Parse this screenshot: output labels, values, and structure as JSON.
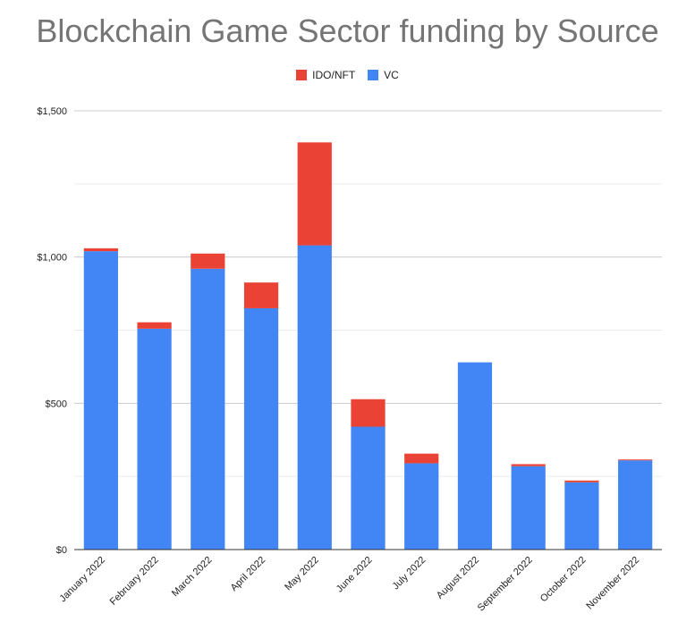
{
  "chart_data": {
    "type": "bar",
    "stacked": true,
    "title": "Blockchain Game Sector funding by Source",
    "xlabel": "",
    "ylabel": "",
    "ylim": [
      0,
      1500
    ],
    "yticks": [
      0,
      500,
      1000,
      1500
    ],
    "ytick_labels": [
      "$0",
      "$500",
      "$1,000",
      "$1,500"
    ],
    "grid": true,
    "legend_position": "top-center",
    "categories": [
      "January 2022",
      "February 2022",
      "March 2022",
      "April 2022",
      "May 2022",
      "June 2022",
      "July 2022",
      "August 2022",
      "September 2022",
      "October 2022",
      "November 2022"
    ],
    "series": [
      {
        "name": "VC",
        "color": "#4285f4",
        "values": [
          1020,
          755,
          960,
          825,
          1040,
          420,
          295,
          640,
          285,
          230,
          305
        ]
      },
      {
        "name": "IDO/NFT",
        "color": "#ea4335",
        "values": [
          10,
          22,
          52,
          88,
          352,
          94,
          33,
          0,
          7,
          6,
          3
        ]
      }
    ],
    "legend_order": [
      "IDO/NFT",
      "VC"
    ]
  }
}
